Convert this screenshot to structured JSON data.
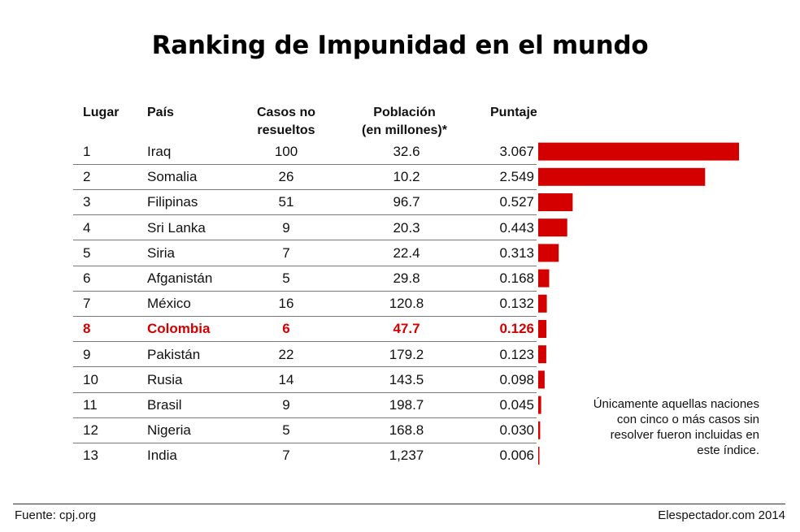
{
  "chart_data": {
    "type": "table",
    "title": "Ranking de Impunidad en el mundo",
    "columns": {
      "rank": "Lugar",
      "country": "País",
      "cases_1": "Casos no",
      "cases_2": "resueltos",
      "pop_1": "Población",
      "pop_2": "(en millones)*",
      "score": "Puntaje"
    },
    "rows": [
      {
        "rank": "1",
        "country": "Iraq",
        "cases": "100",
        "population": "32.6",
        "score": "3.067",
        "value": 3.067
      },
      {
        "rank": "2",
        "country": "Somalia",
        "cases": "26",
        "population": "10.2",
        "score": "2.549",
        "value": 2.549
      },
      {
        "rank": "3",
        "country": "Filipinas",
        "cases": "51",
        "population": "96.7",
        "score": "0.527",
        "value": 0.527
      },
      {
        "rank": "4",
        "country": "Sri Lanka",
        "cases": "9",
        "population": "20.3",
        "score": "0.443",
        "value": 0.443
      },
      {
        "rank": "5",
        "country": "Siria",
        "cases": "7",
        "population": "22.4",
        "score": "0.313",
        "value": 0.313
      },
      {
        "rank": "6",
        "country": "Afganistán",
        "cases": "5",
        "population": "29.8",
        "score": "0.168",
        "value": 0.168
      },
      {
        "rank": "7",
        "country": "México",
        "cases": "16",
        "population": "120.8",
        "score": "0.132",
        "value": 0.132
      },
      {
        "rank": "8",
        "country": "Colombia",
        "cases": "6",
        "population": "47.7",
        "score": "0.126",
        "value": 0.126,
        "highlight": true
      },
      {
        "rank": "9",
        "country": "Pakistán",
        "cases": "22",
        "population": "179.2",
        "score": "0.123",
        "value": 0.123
      },
      {
        "rank": "10",
        "country": "Rusia",
        "cases": "14",
        "population": "143.5",
        "score": "0.098",
        "value": 0.098
      },
      {
        "rank": "11",
        "country": "Brasil",
        "cases": "9",
        "population": "198.7",
        "score": "0.045",
        "value": 0.045
      },
      {
        "rank": "12",
        "country": "Nigeria",
        "cases": "5",
        "population": "168.8",
        "score": "0.030",
        "value": 0.03
      },
      {
        "rank": "13",
        "country": "India",
        "cases": "7",
        "population": "1,237",
        "score": "0.006",
        "value": 0.006
      }
    ],
    "bar_color": "#d40000",
    "highlight_color": "#d40000",
    "xlim": [
      0,
      3.067
    ],
    "note": "Únicamente aquellas naciones con cinco o más casos sin resolver fueron incluidas en este índice.",
    "source": "Fuente: cpj.org",
    "credit": "Elespectador.com 2014"
  }
}
